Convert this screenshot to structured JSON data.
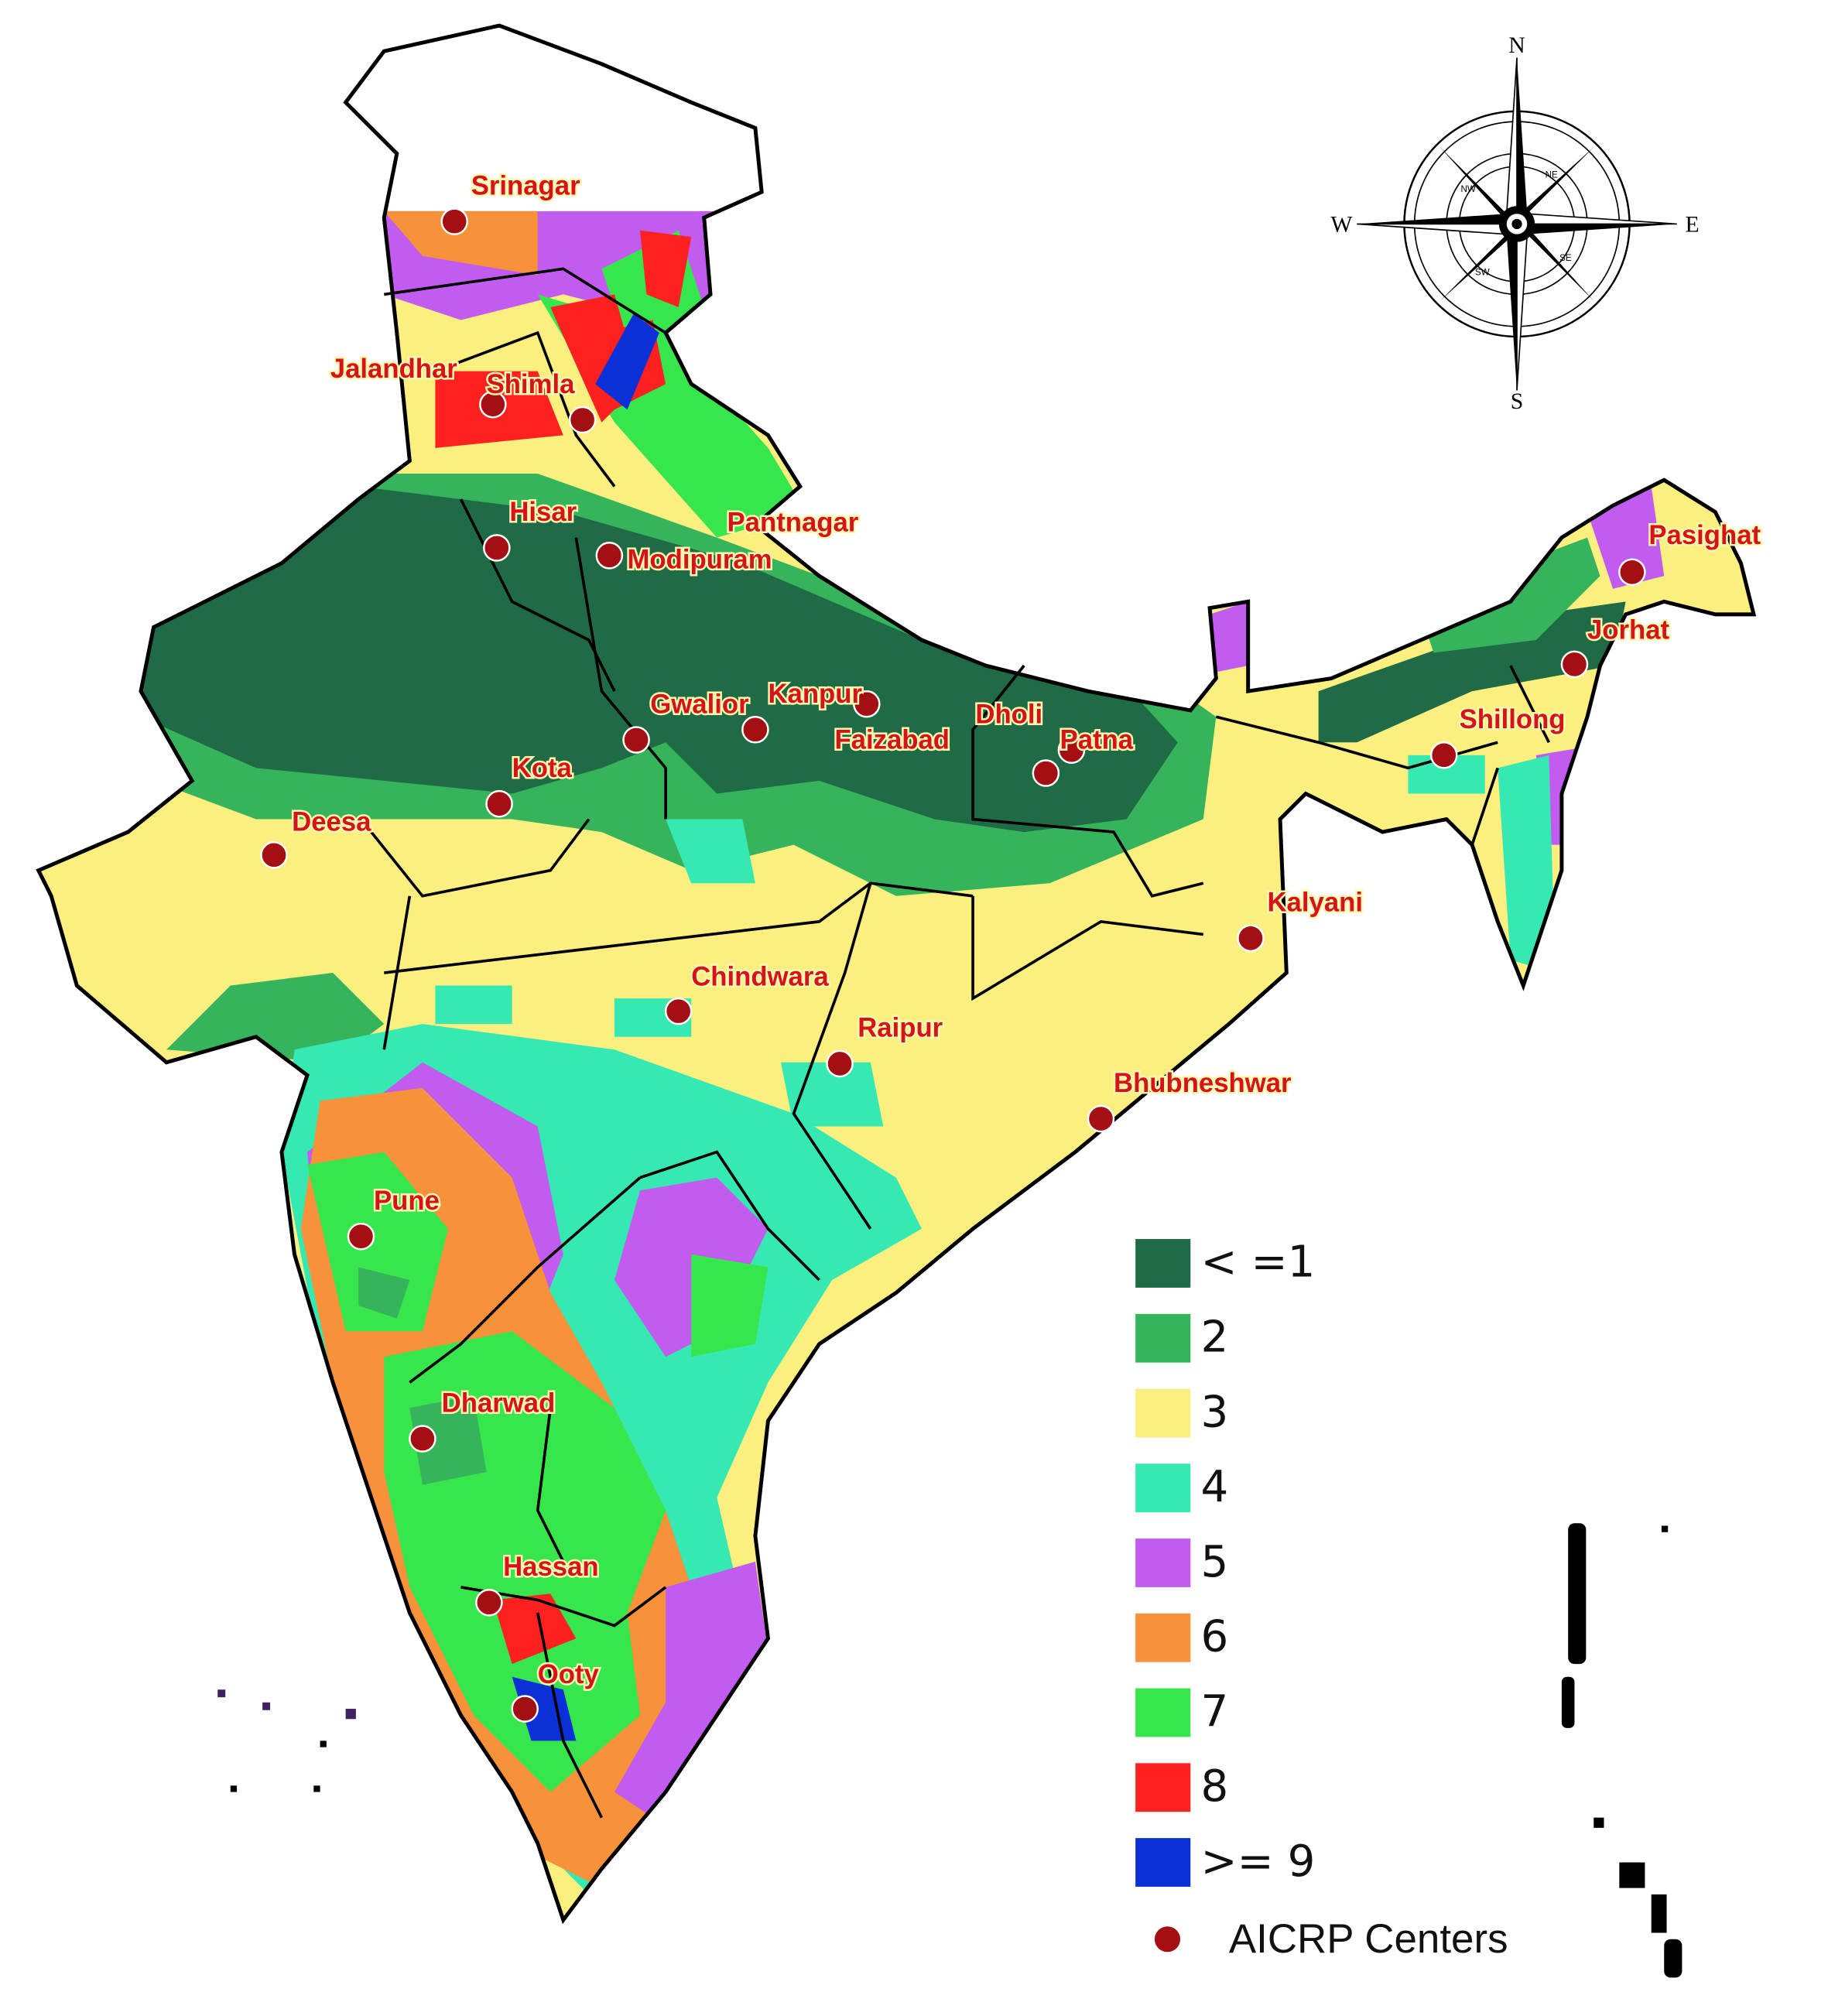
{
  "map": {
    "compass": {
      "N": "N",
      "E": "E",
      "S": "S",
      "W": "W",
      "NE": "NE",
      "NW": "NW",
      "SE": "SE",
      "SW": "SW"
    },
    "centers": [
      "Srinagar",
      "Jalandhar",
      "Shimla",
      "Hisar",
      "Modipuram",
      "Pantnagar",
      "Pasighat",
      "Jorhat",
      "Shillong",
      "Gwalior",
      "Kanpur",
      "Faizabad",
      "Dholi",
      "Patna",
      "Kota",
      "Deesa",
      "Kalyani",
      "Chindwara",
      "Raipur",
      "Bhubneshwar",
      "Pune",
      "Dharwad",
      "Hassan",
      "Ooty"
    ],
    "center_color": "#a30f12",
    "legend": {
      "items": [
        {
          "label": "< =1",
          "color": "#1f6b45"
        },
        {
          "label": "2",
          "color": "#36b45c"
        },
        {
          "label": "3",
          "color": "#fbef80"
        },
        {
          "label": "4",
          "color": "#36e8b2"
        },
        {
          "label": "5",
          "color": "#c25cf0"
        },
        {
          "label": "6",
          "color": "#f7913a"
        },
        {
          "label": "7",
          "color": "#36e64c"
        },
        {
          "label": "8",
          "color": "#ff2020"
        },
        {
          "label": ">= 9",
          "color": "#0b30d8"
        }
      ],
      "centers_label": "AICRP Centers"
    }
  }
}
